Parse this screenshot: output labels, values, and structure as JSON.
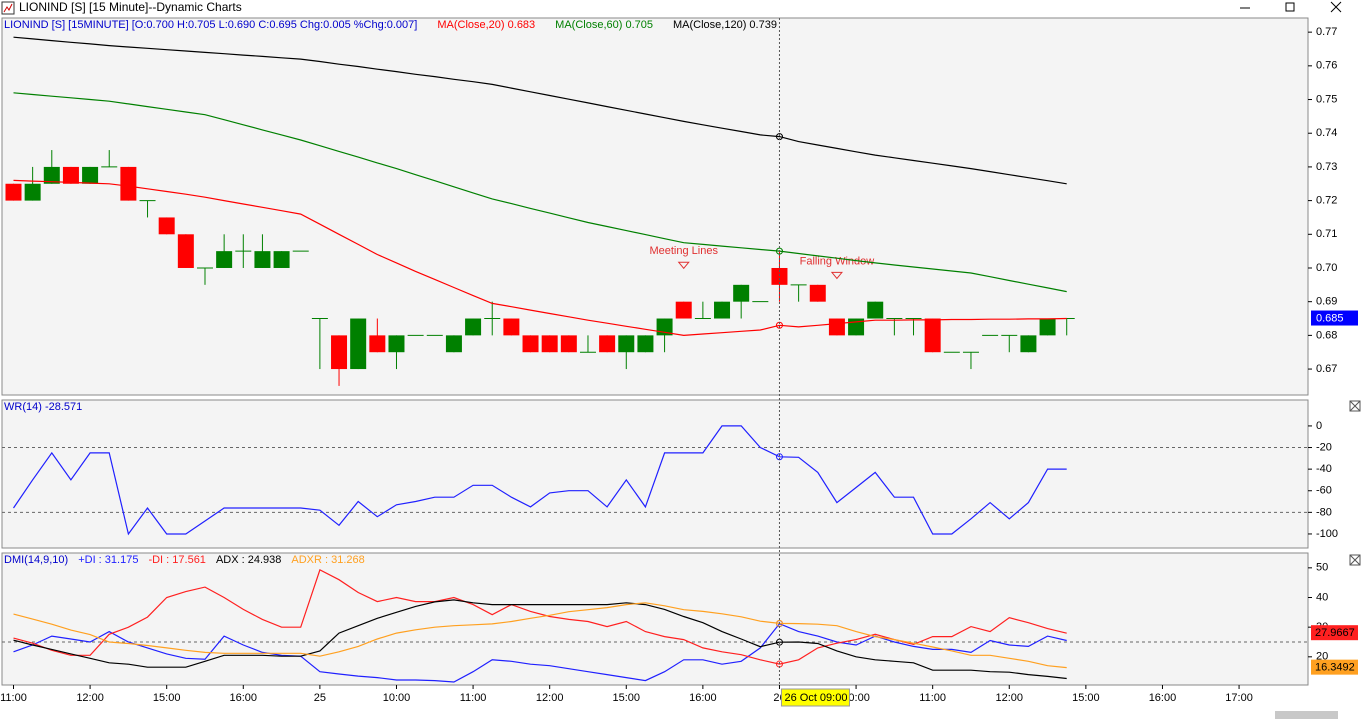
{
  "window": {
    "title": "LIONIND [S] [15 Minute]--Dynamic Charts"
  },
  "cursor": {
    "index": 40,
    "label": "26 Oct 09:00"
  },
  "chart_data": [
    {
      "type": "candlestick",
      "title": "LIONIND [S] [15MINUTE] [O:0.700 H:0.705 L:0.690 C:0.695 Chg:0.005 %Chg:0.007]",
      "title_color": "#0000cc",
      "up_color": "#008000",
      "down_color": "#ff0000",
      "open": [
        0.725,
        0.72,
        0.725,
        0.73,
        0.725,
        0.73,
        0.73,
        0.72,
        0.715,
        0.71,
        0.7,
        0.7,
        0.705,
        0.7,
        0.7,
        0.705,
        0.685,
        0.68,
        0.67,
        0.68,
        0.675,
        0.68,
        0.68,
        0.675,
        0.68,
        0.685,
        0.685,
        0.68,
        0.68,
        0.68,
        0.675,
        0.68,
        0.675,
        0.675,
        0.68,
        0.69,
        0.685,
        0.685,
        0.69,
        0.69,
        0.7,
        0.695,
        0.695,
        0.685,
        0.68,
        0.685,
        0.685,
        0.685,
        0.685,
        0.675,
        0.675,
        0.68,
        0.68,
        0.675,
        0.68,
        0.685
      ],
      "high": [
        0.725,
        0.73,
        0.735,
        0.73,
        0.73,
        0.735,
        0.73,
        0.72,
        0.715,
        0.71,
        0.7,
        0.71,
        0.71,
        0.71,
        0.705,
        0.705,
        0.685,
        0.68,
        0.685,
        0.685,
        0.68,
        0.68,
        0.68,
        0.68,
        0.685,
        0.69,
        0.685,
        0.68,
        0.68,
        0.68,
        0.68,
        0.68,
        0.68,
        0.68,
        0.685,
        0.69,
        0.69,
        0.69,
        0.695,
        0.69,
        0.705,
        0.695,
        0.695,
        0.685,
        0.685,
        0.69,
        0.685,
        0.685,
        0.685,
        0.675,
        0.675,
        0.68,
        0.68,
        0.68,
        0.685,
        0.685
      ],
      "low": [
        0.72,
        0.72,
        0.725,
        0.725,
        0.725,
        0.73,
        0.72,
        0.715,
        0.71,
        0.7,
        0.695,
        0.7,
        0.7,
        0.7,
        0.7,
        0.705,
        0.67,
        0.665,
        0.67,
        0.675,
        0.67,
        0.68,
        0.68,
        0.675,
        0.68,
        0.68,
        0.68,
        0.675,
        0.675,
        0.675,
        0.675,
        0.675,
        0.67,
        0.675,
        0.675,
        0.685,
        0.685,
        0.685,
        0.685,
        0.69,
        0.69,
        0.69,
        0.69,
        0.68,
        0.68,
        0.685,
        0.68,
        0.68,
        0.675,
        0.675,
        0.67,
        0.68,
        0.675,
        0.675,
        0.68,
        0.68
      ],
      "close": [
        0.72,
        0.725,
        0.73,
        0.725,
        0.73,
        0.73,
        0.72,
        0.72,
        0.71,
        0.7,
        0.7,
        0.705,
        0.705,
        0.705,
        0.705,
        0.705,
        0.685,
        0.67,
        0.685,
        0.675,
        0.68,
        0.68,
        0.68,
        0.68,
        0.685,
        0.685,
        0.68,
        0.675,
        0.675,
        0.675,
        0.675,
        0.675,
        0.68,
        0.68,
        0.685,
        0.685,
        0.685,
        0.69,
        0.695,
        0.69,
        0.695,
        0.695,
        0.69,
        0.68,
        0.685,
        0.69,
        0.685,
        0.685,
        0.675,
        0.675,
        0.675,
        0.68,
        0.68,
        0.68,
        0.685,
        0.685
      ],
      "series": [
        {
          "legend": "MA(Close,20)  0.683",
          "color": "#ff0000",
          "values": [
            0.726,
            0.7258,
            0.7256,
            0.7254,
            0.7252,
            0.725,
            0.7243,
            0.7235,
            0.7227,
            0.7219,
            0.721,
            0.72,
            0.719,
            0.718,
            0.717,
            0.716,
            0.713,
            0.71,
            0.707,
            0.704,
            0.7015,
            0.699,
            0.6966,
            0.6942,
            0.6918,
            0.6895,
            0.6885,
            0.6875,
            0.6865,
            0.6855,
            0.6845,
            0.6836,
            0.6827,
            0.6818,
            0.6809,
            0.68,
            0.6804,
            0.6808,
            0.6812,
            0.6816,
            0.683,
            0.6825,
            0.683,
            0.6835,
            0.684,
            0.6845,
            0.6845,
            0.6846,
            0.6846,
            0.6847,
            0.6847,
            0.6848,
            0.6848,
            0.6849,
            0.6849,
            0.685
          ]
        },
        {
          "legend": "MA(Close,60)  0.705",
          "color": "#008000",
          "values": [
            0.752,
            0.7515,
            0.751,
            0.7505,
            0.75,
            0.7495,
            0.7487,
            0.7479,
            0.7471,
            0.7463,
            0.7455,
            0.744,
            0.7425,
            0.741,
            0.7395,
            0.738,
            0.7363,
            0.7346,
            0.7329,
            0.7312,
            0.7295,
            0.7277,
            0.7259,
            0.7241,
            0.7223,
            0.7205,
            0.7191,
            0.7177,
            0.7163,
            0.7149,
            0.7135,
            0.7123,
            0.7111,
            0.7099,
            0.7087,
            0.7075,
            0.707,
            0.7065,
            0.706,
            0.7055,
            0.705,
            0.7043,
            0.7036,
            0.7029,
            0.7022,
            0.7015,
            0.7009,
            0.7003,
            0.6997,
            0.6991,
            0.6985,
            0.6974,
            0.6963,
            0.6952,
            0.6941,
            0.693
          ]
        },
        {
          "legend": "MA(Close,120)  0.739",
          "color": "#000000",
          "values": [
            0.7685,
            0.768,
            0.7675,
            0.767,
            0.7665,
            0.766,
            0.7656,
            0.7652,
            0.7648,
            0.7644,
            0.764,
            0.7636,
            0.7632,
            0.7628,
            0.7624,
            0.762,
            0.7613,
            0.7605,
            0.7598,
            0.759,
            0.7583,
            0.7575,
            0.7568,
            0.756,
            0.7553,
            0.7545,
            0.7534,
            0.7523,
            0.7512,
            0.7501,
            0.749,
            0.7479,
            0.7468,
            0.7457,
            0.7446,
            0.7435,
            0.7425,
            0.7415,
            0.7405,
            0.7395,
            0.739,
            0.7375,
            0.7365,
            0.7355,
            0.7345,
            0.7335,
            0.7327,
            0.7319,
            0.7311,
            0.7303,
            0.7295,
            0.7286,
            0.7277,
            0.7268,
            0.7259,
            0.725
          ]
        }
      ],
      "annotations": [
        {
          "text": "Meeting Lines",
          "index": 35,
          "value": 0.7005,
          "color": "#e03030"
        },
        {
          "text": "Falling Window",
          "index": 43,
          "value": 0.6975,
          "color": "#e03030"
        }
      ],
      "last_label": "0.685",
      "last_value": 0.685,
      "last_color": "#0000ff",
      "xlim": [
        -0.6,
        67.6
      ],
      "ylim": [
        0.6623,
        0.7742
      ],
      "yticks": [
        0.77,
        0.76,
        0.75,
        0.74,
        0.73,
        0.72,
        0.71,
        {
          "value": 0.7,
          "label": "0.70"
        },
        0.69,
        0.68,
        0.67
      ]
    },
    {
      "type": "line",
      "title": "WR(14)  -28.571",
      "title_color": "#0000cc",
      "series": [
        {
          "color": "#2020ff",
          "values": [
            -76,
            -50,
            -25,
            -50,
            -25,
            -25,
            -100,
            -76,
            -100,
            -100,
            -88,
            -76,
            -76,
            -76,
            -76,
            -76,
            -78,
            -92,
            -70,
            -84,
            -73,
            -70,
            -66,
            -66,
            -55,
            -55,
            -66,
            -75,
            -62,
            -60,
            -60,
            -75,
            -50,
            -75,
            -25,
            -25,
            -25,
            0,
            0,
            -20,
            -28.571,
            -29,
            -43,
            -71,
            -57,
            -43,
            -66,
            -66,
            -100,
            -100,
            -86,
            -71,
            -86,
            -71,
            -40,
            -40
          ]
        }
      ],
      "ref_lines": [
        -20,
        -80
      ],
      "xlim": [
        -0.6,
        67.6
      ],
      "ylim": [
        -113,
        24
      ],
      "yticks": [
        0,
        -20,
        -40,
        -60,
        -80,
        -100
      ]
    },
    {
      "type": "line",
      "title": "DMI(14,9,10)",
      "title_color": "#0000cc",
      "series": [
        {
          "legend": "+DI : 31.175",
          "color": "#2020ff",
          "values": [
            21.7,
            24,
            27,
            26,
            25,
            28.5,
            25,
            23,
            21,
            19.5,
            19.2,
            27,
            24,
            21.5,
            20.5,
            20.2,
            15,
            14.2,
            13.5,
            13,
            12.2,
            12.2,
            12,
            11.5,
            15,
            19,
            18.5,
            17.5,
            17,
            16,
            15,
            14,
            13,
            12,
            15,
            19,
            19,
            17.5,
            18.5,
            23,
            31.175,
            28.5,
            27,
            25,
            24,
            27,
            25,
            23.5,
            22.5,
            22.5,
            21.5,
            25.5,
            24,
            23.5,
            27,
            25.5
          ]
        },
        {
          "legend": "-DI : 17.561",
          "color": "#ff2020",
          "last_label": "27.9667",
          "values": [
            26.3,
            24.6,
            22.2,
            20.5,
            20.5,
            27.6,
            30,
            33.4,
            40,
            42,
            43.5,
            40,
            36,
            32.6,
            30,
            30,
            49.3,
            46,
            41.7,
            38.6,
            40,
            38.6,
            38.6,
            40,
            37.6,
            34.2,
            37.6,
            35.3,
            33.6,
            32.6,
            31.9,
            30.2,
            31.9,
            28.5,
            26.8,
            25.8,
            23,
            21.7,
            20.7,
            19,
            17.561,
            19,
            23,
            24.6,
            25.8,
            27.6,
            25.8,
            24.2,
            26.8,
            26.8,
            30.2,
            28.5,
            33.2,
            31.5,
            29.5,
            27.9667
          ]
        },
        {
          "legend": "ADX : 24.938",
          "color": "#000000",
          "values": [
            25.6,
            24,
            22.5,
            21,
            19.5,
            18,
            17.5,
            16.5,
            16.5,
            16.5,
            18.5,
            20.5,
            20.5,
            20.5,
            20.2,
            20.2,
            22,
            28,
            30.5,
            33,
            35,
            37,
            38.5,
            39.2,
            38.2,
            37.6,
            37.6,
            37.6,
            37.6,
            37.6,
            37.6,
            37.6,
            38.2,
            37.6,
            36,
            33.6,
            31.5,
            28.5,
            26,
            23.4,
            24.938,
            25,
            24.5,
            22,
            20,
            19,
            18.5,
            18,
            15.5,
            15.5,
            15.5,
            15,
            14.8,
            14,
            13.4,
            12.7079
          ]
        },
        {
          "legend": "ADXR : 31.268",
          "color": "#ffa020",
          "last_label": "16.3492",
          "values": [
            34.4,
            32.7,
            31,
            29,
            27.5,
            25,
            24.5,
            23.8,
            23,
            22.2,
            21.5,
            21.2,
            21.2,
            21.2,
            21.2,
            21.2,
            20.2,
            21.7,
            23.5,
            26,
            28,
            29.1,
            30,
            30.5,
            30.8,
            31.1,
            31.9,
            33,
            34,
            35.2,
            35.9,
            36.6,
            37.6,
            38.2,
            37.2,
            35.9,
            35.3,
            34.5,
            33.5,
            32,
            31.268,
            31.2,
            31,
            30.5,
            28.5,
            26.8,
            25.8,
            24.6,
            23.3,
            22,
            20.5,
            20.5,
            19.5,
            18.5,
            17,
            16.3492
          ]
        }
      ],
      "ref_lines": [
        25
      ],
      "xlim": [
        -0.6,
        67.6
      ],
      "ylim": [
        10.5,
        55
      ],
      "yticks": [
        50,
        40,
        30,
        20
      ],
      "xticks": [
        {
          "value": 0,
          "label": "11:00"
        },
        {
          "value": 4,
          "label": "12:00"
        },
        {
          "value": 8,
          "label": "15:00"
        },
        {
          "value": 12,
          "label": "16:00"
        },
        {
          "value": 16,
          "label": "25"
        },
        {
          "value": 20,
          "label": "10:00"
        },
        {
          "value": 24,
          "label": "11:00"
        },
        {
          "value": 28,
          "label": "12:00"
        },
        {
          "value": 32,
          "label": "15:00"
        },
        {
          "value": 36,
          "label": "16:00"
        },
        {
          "value": 40,
          "label": "26"
        },
        {
          "value": 44,
          "label": "10:00"
        },
        {
          "value": 48,
          "label": "11:00"
        },
        {
          "value": 52,
          "label": "12:00"
        },
        {
          "value": 56,
          "label": "15:00"
        },
        {
          "value": 60,
          "label": "16:00"
        },
        {
          "value": 64,
          "label": "17:00"
        }
      ]
    }
  ]
}
